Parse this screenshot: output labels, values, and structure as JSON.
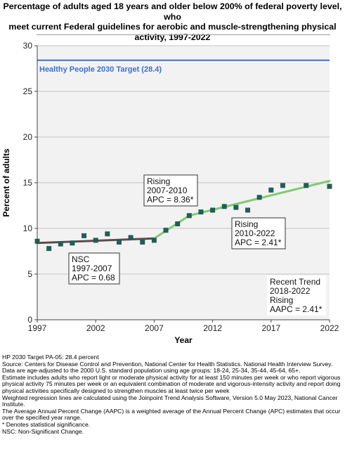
{
  "header": {
    "title_line1": "Percentage of adults aged 18 years and older below 200% of federal poverty level, who",
    "title_line2": "meet current Federal guidelines for aerobic and muscle-strengthening physical",
    "title_line3": "activity, 1997-2022"
  },
  "chart_data": {
    "type": "scatter",
    "xlabel": "Year",
    "ylabel": "Percent of adults",
    "xlim": [
      1997,
      2022
    ],
    "ylim": [
      0,
      30
    ],
    "grid": true,
    "x_ticks": [
      "1997",
      "2002",
      "2007",
      "2012",
      "2017",
      "2022"
    ],
    "y_ticks": [
      "0",
      "5",
      "10",
      "15",
      "20",
      "25",
      "30"
    ],
    "series": [
      {
        "x": [
          1997,
          1998,
          1999,
          2000,
          2001,
          2002,
          2003,
          2004,
          2005,
          2006,
          2007,
          2008,
          2009,
          2010,
          2011,
          2012,
          2013,
          2014,
          2015,
          2016,
          2017,
          2018,
          2019,
          2020,
          2022
        ],
        "y": [
          8.6,
          7.8,
          8.3,
          8.4,
          9.2,
          8.7,
          9.4,
          8.5,
          9.0,
          8.5,
          8.7,
          9.8,
          10.5,
          11.4,
          11.8,
          12.0,
          12.4,
          12.3,
          12.0,
          13.4,
          14.2,
          14.7,
          null,
          14.7,
          14.6
        ],
        "color": "#1f5f55"
      }
    ],
    "trend_lines": [
      {
        "label": "NSC 1997-2007",
        "x": [
          1997,
          2007
        ],
        "y": [
          8.4,
          8.9
        ],
        "color": "#5e4b4b"
      },
      {
        "label": "Rising 2007-2010",
        "x": [
          2007,
          2010
        ],
        "y": [
          8.9,
          11.4
        ],
        "color": "#7dcc6e"
      },
      {
        "label": "Rising 2010-2022",
        "x": [
          2010,
          2022
        ],
        "y": [
          11.4,
          15.2
        ],
        "color": "#7dcc6e"
      }
    ],
    "target": {
      "value": 28.4,
      "label": "Healthy People 2030 Target (28.4)",
      "color": "#3c6fd1"
    },
    "annotations": {
      "nsc": [
        "NSC",
        "1997-2007",
        "APC =  0.68"
      ],
      "rising1": [
        "Rising",
        "2007-2010",
        "APC =  8.36*"
      ],
      "rising2": [
        "Rising",
        "2010-2022",
        "APC =  2.41*"
      ],
      "recent": [
        "Recent Trend",
        "2018-2022",
        "Rising",
        "AAPC =  2.41*"
      ]
    }
  },
  "notes": [
    "HP 2030 Target PA-05: 28.4 percent",
    "Source: Centers for Disease Control and Prevention, National Center for Health Statistics. National Health Interview Survey.",
    "Data are age-adjusted to the 2000 U.S. standard population using age groups: 18-24, 25-34, 35-44, 45-64, 65+.",
    "Estimate includes adults who report light or moderate physical activity for at least 150 minutes per week or who report vigorous physical activity 75 minutes per week or an equivalent combination of moderate and vigorous-intensity activity and report doing physical activities specifically designed to strengthen muscles at least twice per week",
    "Weighted regression lines are calculated using the Joinpoint Trend Analysis Software, Version 5.0 May 2023, National Cancer Institute.",
    "The Average Annual Percent Change (AAPC) is a weighted average of the Annual Percent Change (APC) estimates that occur over the specified year range.",
    "* Denotes statistical significance.",
    "NSC: Non-Significant Change."
  ]
}
